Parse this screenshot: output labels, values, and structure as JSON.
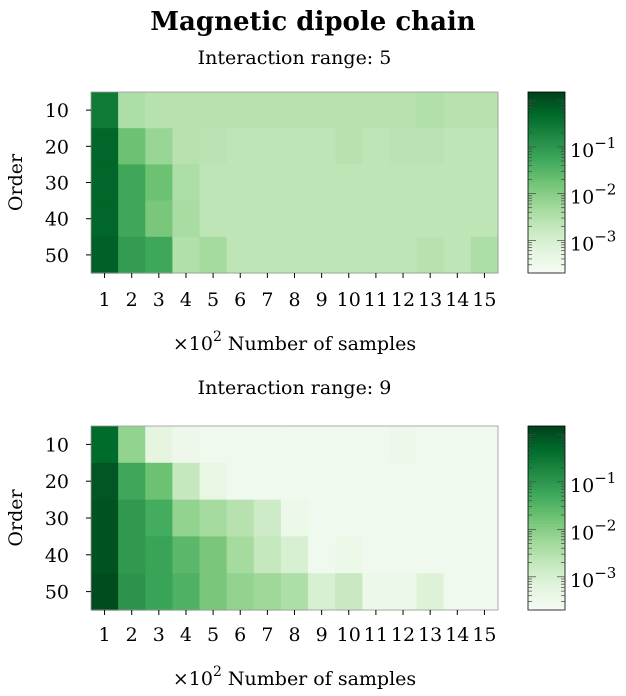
{
  "figure": {
    "title": "Magnetic dipole chain"
  },
  "chart_data": [
    {
      "type": "heatmap",
      "title": "Interaction range: 5",
      "xlabel_prefix": "×10",
      "xlabel_exp": "2",
      "xlabel_rest": " Number of samples",
      "ylabel": "Order",
      "x": [
        1,
        2,
        3,
        4,
        5,
        6,
        7,
        8,
        9,
        10,
        11,
        12,
        13,
        14,
        15
      ],
      "y": [
        10,
        20,
        30,
        40,
        50
      ],
      "color_scale": "log",
      "colormap": "Greens",
      "colorbar_ticks": [
        {
          "base": "10",
          "exp": "−1"
        },
        {
          "base": "10",
          "exp": "−2"
        },
        {
          "base": "10",
          "exp": "−3"
        }
      ],
      "values": [
        [
          0.3,
          0.004,
          0.003,
          0.003,
          0.003,
          0.003,
          0.003,
          0.003,
          0.003,
          0.003,
          0.003,
          0.003,
          0.0035,
          0.003,
          0.003
        ],
        [
          0.6,
          0.02,
          0.007,
          0.003,
          0.0028,
          0.0025,
          0.0025,
          0.0025,
          0.0025,
          0.003,
          0.0025,
          0.0028,
          0.0028,
          0.0025,
          0.0025
        ],
        [
          0.6,
          0.06,
          0.02,
          0.004,
          0.0025,
          0.0025,
          0.0025,
          0.0025,
          0.0025,
          0.0025,
          0.0025,
          0.0025,
          0.0025,
          0.0025,
          0.0025
        ],
        [
          0.6,
          0.06,
          0.015,
          0.0045,
          0.0025,
          0.0025,
          0.0025,
          0.0025,
          0.0025,
          0.0025,
          0.0025,
          0.0025,
          0.0025,
          0.0025,
          0.0025
        ],
        [
          0.7,
          0.09,
          0.06,
          0.0035,
          0.005,
          0.0025,
          0.0025,
          0.0025,
          0.0025,
          0.0025,
          0.0025,
          0.0025,
          0.003,
          0.0025,
          0.004
        ]
      ]
    },
    {
      "type": "heatmap",
      "title": "Interaction range: 9",
      "xlabel_prefix": "×10",
      "xlabel_exp": "2",
      "xlabel_rest": " Number of samples",
      "ylabel": "Order",
      "x": [
        1,
        2,
        3,
        4,
        5,
        6,
        7,
        8,
        9,
        10,
        11,
        12,
        13,
        14,
        15
      ],
      "y": [
        10,
        20,
        30,
        40,
        50
      ],
      "color_scale": "log",
      "colormap": "Greens",
      "colorbar_ticks": [
        {
          "base": "10",
          "exp": "−1"
        },
        {
          "base": "10",
          "exp": "−2"
        },
        {
          "base": "10",
          "exp": "−3"
        }
      ],
      "values": [
        [
          0.5,
          0.008,
          0.0006,
          0.00035,
          0.0003,
          0.0003,
          0.0003,
          0.0003,
          0.0003,
          0.0003,
          0.0003,
          0.00035,
          0.0003,
          0.0003,
          0.0003
        ],
        [
          0.9,
          0.06,
          0.02,
          0.002,
          0.0005,
          0.0003,
          0.0003,
          0.0003,
          0.0003,
          0.0003,
          0.0003,
          0.0003,
          0.0003,
          0.0003,
          0.0003
        ],
        [
          1.0,
          0.1,
          0.05,
          0.008,
          0.005,
          0.003,
          0.0015,
          0.0004,
          0.0003,
          0.0003,
          0.0003,
          0.0003,
          0.0003,
          0.0003,
          0.0003
        ],
        [
          1.0,
          0.1,
          0.07,
          0.03,
          0.015,
          0.005,
          0.002,
          0.001,
          0.0003,
          0.0004,
          0.0003,
          0.0003,
          0.0003,
          0.0003,
          0.0003
        ],
        [
          1.2,
          0.12,
          0.07,
          0.04,
          0.015,
          0.008,
          0.006,
          0.004,
          0.001,
          0.0018,
          0.0004,
          0.0004,
          0.0008,
          0.0003,
          0.0003
        ]
      ]
    }
  ]
}
